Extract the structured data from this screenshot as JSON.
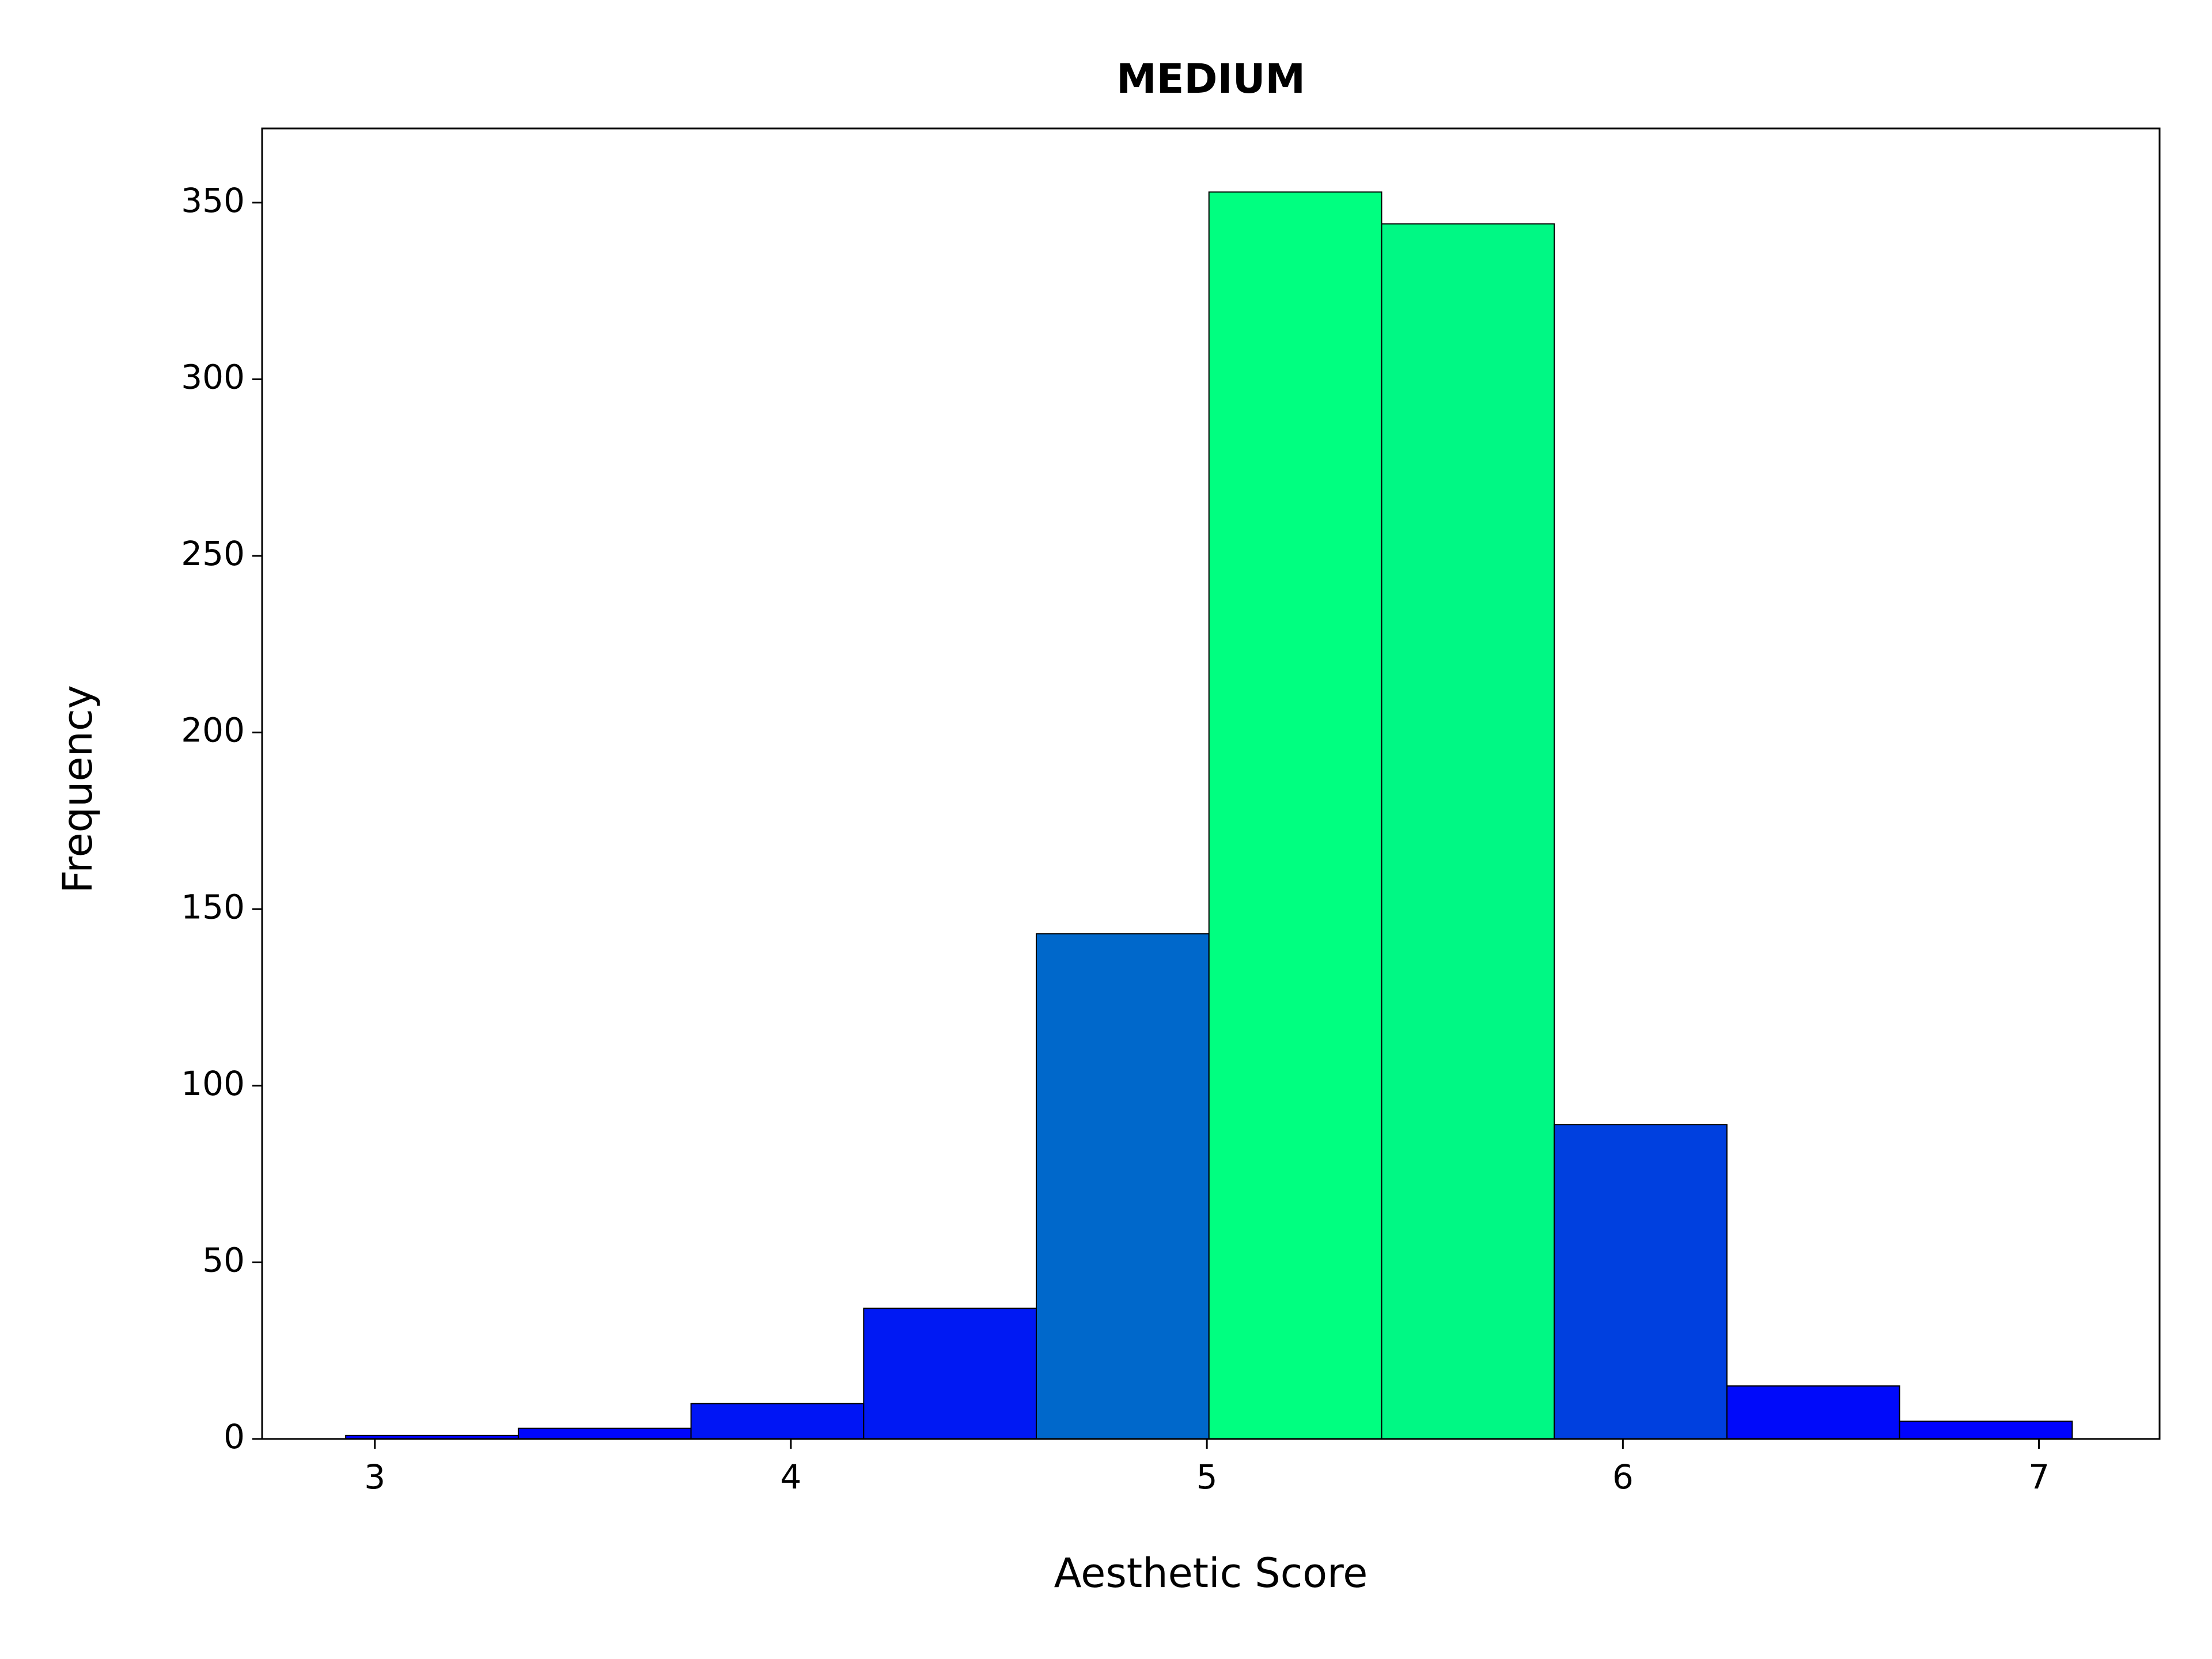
{
  "chart_data": {
    "type": "histogram",
    "title": "MEDIUM",
    "xlabel": "Aesthetic Score",
    "ylabel": "Frequency",
    "bins": [
      2.93,
      3.345,
      3.76,
      4.175,
      4.59,
      5.005,
      5.42,
      5.835,
      6.25,
      6.665,
      7.08
    ],
    "values": [
      1,
      3,
      10,
      37,
      143,
      353,
      344,
      89,
      15,
      5
    ],
    "colors": [
      "#0002fe",
      "#0006fc",
      "#0015f5",
      "#0019f3",
      "#0068cb",
      "#00ff80",
      "#00f884",
      "#0040df",
      "#000afa",
      "#0003fe"
    ],
    "edgecolor": "#000000",
    "xlim": [
      2.729,
      7.29
    ],
    "ylim": [
      0,
      371
    ],
    "xticks": [
      3,
      4,
      5,
      6,
      7
    ],
    "yticks": [
      0,
      50,
      100,
      150,
      200,
      250,
      300,
      350
    ]
  }
}
